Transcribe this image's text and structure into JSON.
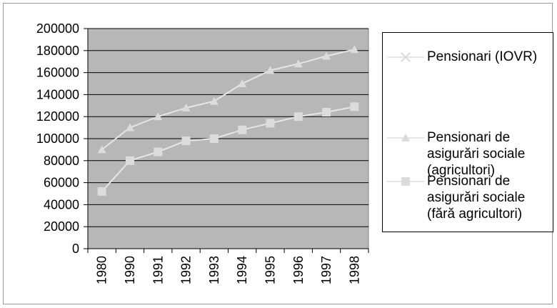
{
  "chart_data": {
    "type": "line",
    "categories": [
      "1980",
      "1990",
      "1991",
      "1992",
      "1993",
      "1994",
      "1995",
      "1996",
      "1997",
      "1998"
    ],
    "series": [
      {
        "name": "Pensionari (IOVR)",
        "marker": "x",
        "values": [
          null,
          null,
          null,
          null,
          null,
          null,
          null,
          null,
          null,
          null
        ]
      },
      {
        "name": "Pensionari de asigurări sociale (agricultori)",
        "marker": "triangle",
        "values": [
          90000,
          110000,
          120000,
          128000,
          134000,
          150000,
          162000,
          168000,
          175000,
          181000
        ]
      },
      {
        "name": "Pensionari de asigurări sociale (fără agricultori)",
        "marker": "square",
        "values": [
          52000,
          80000,
          88000,
          98000,
          100000,
          108000,
          114000,
          120000,
          124000,
          129000
        ]
      }
    ],
    "ylim": [
      0,
      200000
    ],
    "yticks": [
      0,
      20000,
      40000,
      60000,
      80000,
      100000,
      120000,
      140000,
      160000,
      180000,
      200000
    ],
    "grid": true,
    "legend_position": "right",
    "colors": {
      "plot_background": "#b7b7b7",
      "gridline": "#000000",
      "series_line": "#e6e6e6",
      "series_marker": "#dcdcdc"
    }
  }
}
